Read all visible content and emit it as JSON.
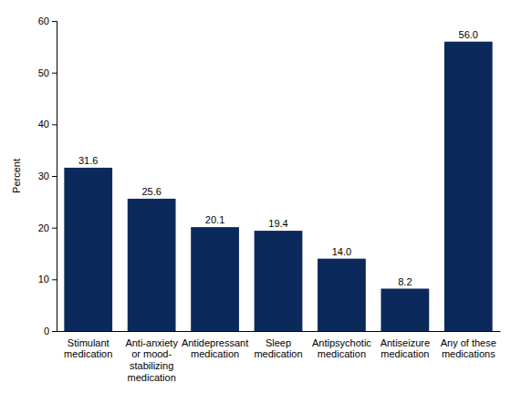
{
  "chart_data": {
    "type": "bar",
    "categories": [
      "Stimulant\nmedication",
      "Anti-anxiety\nor mood-\nstabilizing\nmedication",
      "Antidepressant\nmedication",
      "Sleep\nmedication",
      "Antipsychotic\nmedication",
      "Antiseizure\nmedication",
      "Any of these\nmedications"
    ],
    "values": [
      31.6,
      25.6,
      20.1,
      19.4,
      14.0,
      8.2,
      56.0
    ],
    "value_labels": [
      "31.6",
      "25.6",
      "20.1",
      "19.4",
      "14.0",
      "8.2",
      "56.0"
    ],
    "color": "#0b2a5b",
    "ylabel": "Percent",
    "ylim": [
      0,
      60
    ],
    "yticks": [
      0,
      10,
      20,
      30,
      40,
      50,
      60
    ],
    "grid": false,
    "data_labels": true
  }
}
